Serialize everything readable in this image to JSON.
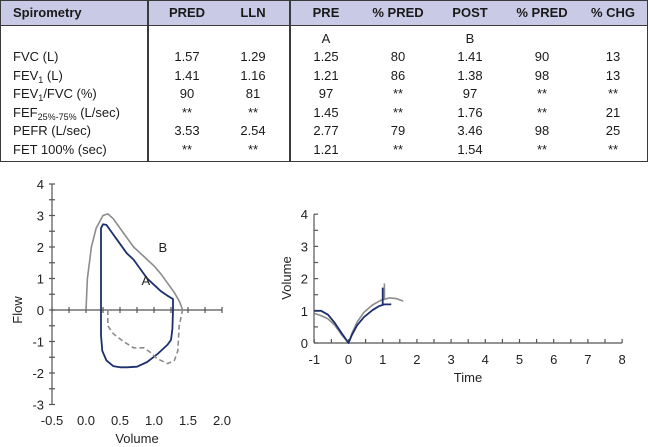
{
  "table": {
    "headers": [
      "Spirometry",
      "PRED",
      "LLN",
      "PRE",
      "% PRED",
      "POST",
      "% PRED",
      "% CHG"
    ],
    "trial_labels": {
      "pre": "A",
      "post": "B"
    },
    "rows": [
      {
        "label": "FVC (L)",
        "label_main": "FVC (L)",
        "pred": "1.57",
        "lln": "1.29",
        "pre": "1.25",
        "pre_pct": "80",
        "post": "1.41",
        "post_pct": "90",
        "chg": "13"
      },
      {
        "label": "FEV1 (L)",
        "label_main": "FEV",
        "label_sub": "1",
        "label_tail": " (L)",
        "pred": "1.41",
        "lln": "1.16",
        "pre": "1.21",
        "pre_pct": "86",
        "post": "1.38",
        "post_pct": "98",
        "chg": "13"
      },
      {
        "label": "FEV1/FVC (%)",
        "label_main": "FEV",
        "label_sub": "1",
        "label_tail": "/FVC (%)",
        "pred": "90",
        "lln": "81",
        "pre": "97",
        "pre_pct": "**",
        "post": "97",
        "post_pct": "**",
        "chg": "**"
      },
      {
        "label": "FEF25%-75% (L/sec)",
        "label_main": "FEF",
        "label_sub": "25%-75%",
        "label_tail": " (L/sec)",
        "pred": "**",
        "lln": "**",
        "pre": "1.45",
        "pre_pct": "**",
        "post": "1.76",
        "post_pct": "**",
        "chg": "21"
      },
      {
        "label": "PEFR (L/sec)",
        "label_main": "PEFR (L/sec)",
        "pred": "3.53",
        "lln": "2.54",
        "pre": "2.77",
        "pre_pct": "79",
        "post": "3.46",
        "post_pct": "98",
        "chg": "25"
      },
      {
        "label": "FET 100% (sec)",
        "label_main": "FET 100% (sec)",
        "pred": "**",
        "lln": "**",
        "pre": "1.21",
        "pre_pct": "**",
        "post": "1.54",
        "post_pct": "**",
        "chg": "**"
      }
    ],
    "colors": {
      "header_bg": "#c9cbe6",
      "border": "#3a3a3a"
    }
  },
  "chart_data": [
    {
      "type": "line",
      "title": "",
      "xlabel": "Volume",
      "ylabel": "Flow",
      "xlim": [
        -0.5,
        2.0
      ],
      "ylim": [
        -3,
        4
      ],
      "xticks": [
        "-0.5",
        "0.0",
        "0.5",
        "1.0",
        "1.5",
        "2.0"
      ],
      "xtick_values": [
        -0.5,
        0.0,
        0.5,
        1.0,
        1.5,
        2.0
      ],
      "yticks": [
        "4",
        "3",
        "2",
        "1",
        "0",
        "-1",
        "-2",
        "-3"
      ],
      "ytick_values": [
        4,
        3,
        2,
        1,
        0,
        -1,
        -2,
        -3
      ],
      "grid": false,
      "annotations": [
        {
          "text": "A",
          "x": 0.88,
          "y": 0.95
        },
        {
          "text": "B",
          "x": 1.13,
          "y": 2.0
        }
      ],
      "series": [
        {
          "name": "A (PRE)",
          "color": "#1c2f6e",
          "expiratory": [
            [
              0.22,
              0.0
            ],
            [
              0.22,
              2.6
            ],
            [
              0.25,
              2.72
            ],
            [
              0.3,
              2.7
            ],
            [
              0.4,
              2.4
            ],
            [
              0.5,
              2.1
            ],
            [
              0.6,
              1.8
            ],
            [
              0.7,
              1.6
            ],
            [
              0.8,
              1.3
            ],
            [
              0.9,
              1.0
            ],
            [
              1.0,
              0.8
            ],
            [
              1.1,
              0.6
            ],
            [
              1.2,
              0.45
            ],
            [
              1.28,
              0.35
            ],
            [
              1.28,
              0.0
            ]
          ],
          "inspiratory": [
            [
              0.22,
              0.0
            ],
            [
              0.22,
              -0.3
            ],
            [
              0.22,
              -0.8
            ],
            [
              0.24,
              -1.3
            ],
            [
              0.3,
              -1.6
            ],
            [
              0.4,
              -1.78
            ],
            [
              0.5,
              -1.82
            ],
            [
              0.6,
              -1.82
            ],
            [
              0.75,
              -1.8
            ],
            [
              0.9,
              -1.65
            ],
            [
              1.05,
              -1.4
            ],
            [
              1.2,
              -1.1
            ],
            [
              1.25,
              -0.95
            ],
            [
              1.27,
              -0.6
            ],
            [
              1.28,
              0.0
            ]
          ]
        },
        {
          "name": "B (POST)",
          "color": "#8c8c8c",
          "expiratory": [
            [
              0.0,
              0.0
            ],
            [
              0.02,
              1.0
            ],
            [
              0.08,
              2.0
            ],
            [
              0.15,
              2.6
            ],
            [
              0.25,
              3.0
            ],
            [
              0.32,
              3.05
            ],
            [
              0.4,
              2.9
            ],
            [
              0.5,
              2.6
            ],
            [
              0.6,
              2.3
            ],
            [
              0.7,
              2.0
            ],
            [
              0.85,
              1.7
            ],
            [
              1.0,
              1.4
            ],
            [
              1.1,
              1.15
            ],
            [
              1.2,
              0.85
            ],
            [
              1.3,
              0.55
            ],
            [
              1.38,
              0.25
            ],
            [
              1.42,
              0.0
            ]
          ],
          "inspiratory": [
            [
              0.32,
              0.0
            ],
            [
              0.32,
              -0.5
            ],
            [
              0.4,
              -0.75
            ],
            [
              0.55,
              -1.0
            ],
            [
              0.7,
              -1.2
            ],
            [
              0.85,
              -1.2
            ],
            [
              0.95,
              -1.35
            ],
            [
              1.05,
              -1.55
            ],
            [
              1.2,
              -1.7
            ],
            [
              1.3,
              -1.6
            ],
            [
              1.35,
              -1.3
            ],
            [
              1.37,
              -0.5
            ],
            [
              1.42,
              0.0
            ]
          ]
        }
      ]
    },
    {
      "type": "line",
      "title": "",
      "xlabel": "Time",
      "ylabel": "Volume",
      "xlim": [
        -1,
        8
      ],
      "ylim": [
        0,
        4
      ],
      "xticks": [
        "-1",
        "0",
        "1",
        "2",
        "3",
        "4",
        "5",
        "6",
        "7",
        "8"
      ],
      "xtick_values": [
        -1,
        0,
        1,
        2,
        3,
        4,
        5,
        6,
        7,
        8
      ],
      "yticks": [
        "4",
        "3",
        "2",
        "1",
        "0"
      ],
      "ytick_values": [
        4,
        3,
        2,
        1,
        0
      ],
      "grid": false,
      "series": [
        {
          "name": "A (PRE)",
          "color": "#1c2f6e",
          "points": [
            [
              -1.0,
              1.0
            ],
            [
              -0.8,
              1.0
            ],
            [
              -0.6,
              0.88
            ],
            [
              -0.4,
              0.62
            ],
            [
              -0.2,
              0.3
            ],
            [
              0.0,
              0.0
            ],
            [
              0.1,
              0.25
            ],
            [
              0.25,
              0.55
            ],
            [
              0.45,
              0.8
            ],
            [
              0.7,
              1.02
            ],
            [
              0.9,
              1.15
            ],
            [
              1.05,
              1.2
            ],
            [
              1.25,
              1.2
            ]
          ],
          "marker": {
            "t": 1.0,
            "from": 1.2,
            "to": 1.72
          }
        },
        {
          "name": "B (POST)",
          "color": "#8c8c8c",
          "points": [
            [
              -1.0,
              0.92
            ],
            [
              -0.8,
              0.85
            ],
            [
              -0.6,
              0.75
            ],
            [
              -0.4,
              0.55
            ],
            [
              -0.2,
              0.25
            ],
            [
              0.0,
              0.0
            ],
            [
              0.1,
              0.3
            ],
            [
              0.25,
              0.65
            ],
            [
              0.45,
              0.95
            ],
            [
              0.7,
              1.18
            ],
            [
              0.95,
              1.33
            ],
            [
              1.2,
              1.4
            ],
            [
              1.4,
              1.38
            ],
            [
              1.6,
              1.3
            ]
          ],
          "marker": {
            "t": 1.05,
            "from": 1.33,
            "to": 1.85
          }
        }
      ]
    }
  ]
}
